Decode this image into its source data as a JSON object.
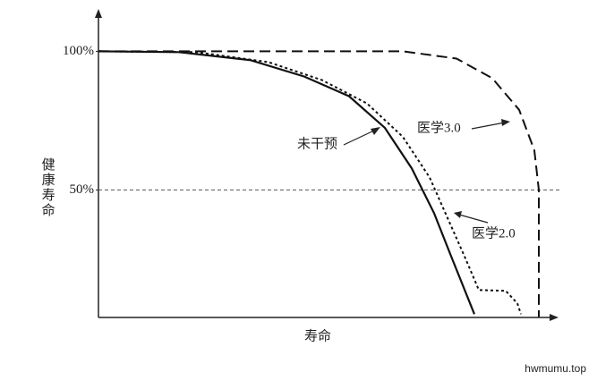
{
  "chart_data": {
    "type": "line",
    "y_label": "健康寿命",
    "x_label": "寿命",
    "ylim": [
      4,
      114
    ],
    "xlim": [
      0,
      100
    ],
    "yticks": [
      {
        "value": 50,
        "label": "50%"
      },
      {
        "value": 100,
        "label": "100%"
      }
    ],
    "hline": 50,
    "series": [
      {
        "name": "未干预",
        "color": "#111",
        "style": "solid",
        "x": [
          0,
          18,
          34,
          46,
          56,
          64,
          70,
          75,
          79,
          84
        ],
        "values": [
          100,
          99.7,
          96.8,
          90.9,
          83.8,
          72.4,
          57.8,
          41.6,
          25.3,
          5.2
        ]
      },
      {
        "name": "医学2.0",
        "color": "#111",
        "style": "dotted",
        "x": [
          0,
          22,
          38,
          50,
          60,
          68,
          74,
          78,
          82,
          85,
          91,
          93.6,
          94.4
        ],
        "values": [
          100,
          99.7,
          96.1,
          89.6,
          81.2,
          69.2,
          54.5,
          39.9,
          25.3,
          13.9,
          13.6,
          9.1,
          5.2
        ]
      },
      {
        "name": "医学3.0",
        "color": "#111",
        "style": "dashed",
        "x": [
          0,
          68,
          80,
          88,
          94,
          97.4,
          98.4,
          98.4
        ],
        "values": [
          100,
          100,
          97.4,
          90.3,
          78.9,
          64.3,
          50,
          4.2
        ]
      }
    ]
  },
  "watermark": "hwmumu.top"
}
